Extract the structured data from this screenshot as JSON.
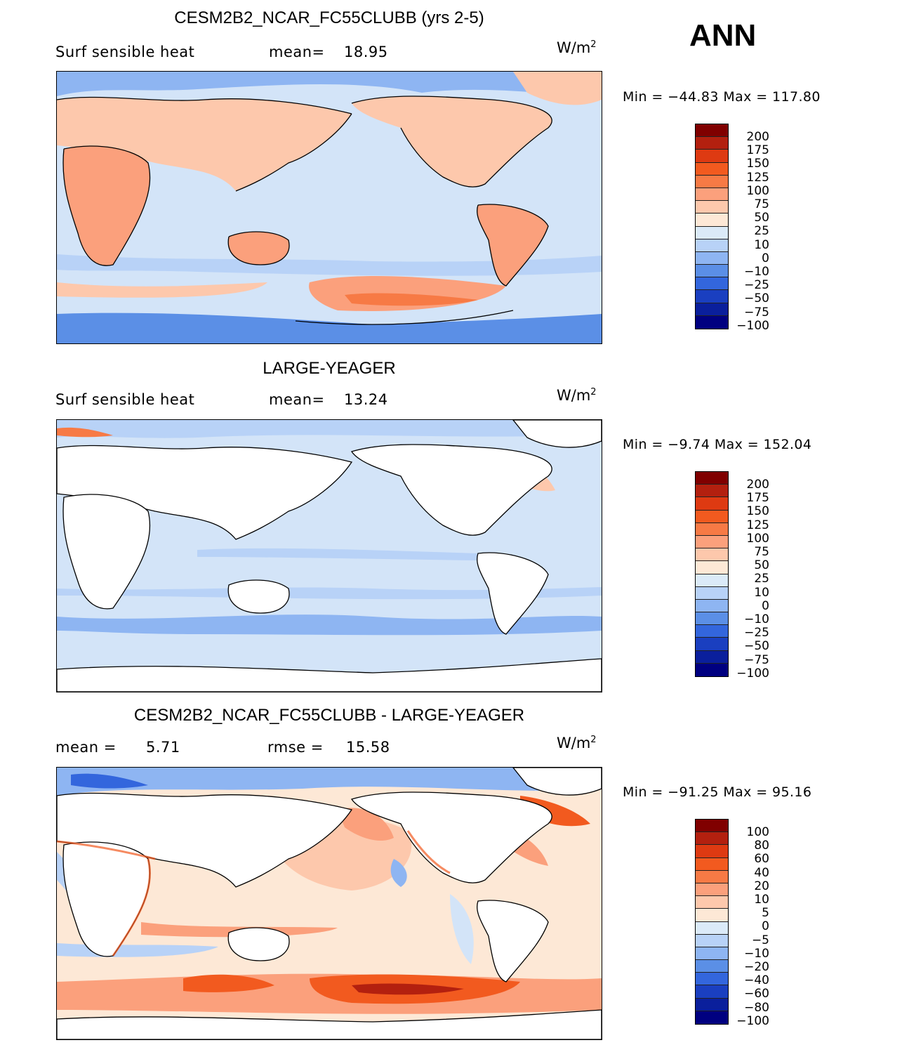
{
  "season": "ANN",
  "panels": [
    {
      "title": "CESM2B2_NCAR_FC55CLUBB (yrs 2-5)",
      "left_label": "Surf sensible heat",
      "mean_label": "mean=",
      "mean_value": "18.95",
      "units": "W/m",
      "units_sup": "2",
      "min_label": "Min  =",
      "min_value": "−44.83",
      "max_label": "Max  =",
      "max_value": "117.80",
      "colorbar_labels": [
        "200",
        "175",
        "150",
        "125",
        "100",
        "75",
        "50",
        "25",
        "10",
        "0",
        "−10",
        "−25",
        "−50",
        "−75",
        "−100"
      ]
    },
    {
      "title": "LARGE-YEAGER",
      "left_label": "Surf sensible heat",
      "mean_label": "mean=",
      "mean_value": "13.24",
      "units": "W/m",
      "units_sup": "2",
      "min_label": "Min  =",
      "min_value": "−9.74",
      "max_label": "Max  =",
      "max_value": "152.04",
      "colorbar_labels": [
        "200",
        "175",
        "150",
        "125",
        "100",
        "75",
        "50",
        "25",
        "10",
        "0",
        "−10",
        "−25",
        "−50",
        "−75",
        "−100"
      ]
    },
    {
      "title": "CESM2B2_NCAR_FC55CLUBB - LARGE-YEAGER",
      "left_label": "mean  =",
      "left_value": "5.71",
      "mean_label": "rmse  =",
      "mean_value": "15.58",
      "units": "W/m",
      "units_sup": "2",
      "min_label": "Min  =",
      "min_value": "−91.25",
      "max_label": "Max  =",
      "max_value": "95.16",
      "colorbar_labels": [
        "100",
        "80",
        "60",
        "40",
        "20",
        "10",
        "5",
        "0",
        "−5",
        "−10",
        "−20",
        "−40",
        "−60",
        "−80",
        "−100"
      ]
    }
  ],
  "colors": {
    "scale": [
      "#800000",
      "#b3200f",
      "#de3a12",
      "#f25a1f",
      "#f77a45",
      "#fba07c",
      "#fdc8ac",
      "#fde8d6",
      "#dbeaf8",
      "#b8d2f7",
      "#8eb5f2",
      "#5b8fe6",
      "#3366dd",
      "#1a3fc0",
      "#0a1f9c",
      "#000080"
    ],
    "ocean_pos": "#fcdcc8",
    "ocean_neg": "#d3e4f8",
    "land": "#ffffff"
  },
  "chart_data": [
    {
      "type": "heatmap",
      "title": "CESM2B2_NCAR_FC55CLUBB (yrs 2-5)",
      "variable": "Surf sensible heat",
      "units": "W/m2",
      "mean": 18.95,
      "min": -44.83,
      "max": 117.8,
      "levels": [
        -100,
        -75,
        -50,
        -25,
        -10,
        0,
        10,
        25,
        50,
        75,
        100,
        125,
        150,
        175,
        200
      ]
    },
    {
      "type": "heatmap",
      "title": "LARGE-YEAGER",
      "variable": "Surf sensible heat",
      "units": "W/m2",
      "mean": 13.24,
      "min": -9.74,
      "max": 152.04,
      "levels": [
        -100,
        -75,
        -50,
        -25,
        -10,
        0,
        10,
        25,
        50,
        75,
        100,
        125,
        150,
        175,
        200
      ]
    },
    {
      "type": "heatmap",
      "title": "CESM2B2_NCAR_FC55CLUBB - LARGE-YEAGER",
      "units": "W/m2",
      "mean": 5.71,
      "rmse": 15.58,
      "min": -91.25,
      "max": 95.16,
      "levels": [
        -100,
        -80,
        -60,
        -40,
        -20,
        -10,
        -5,
        0,
        5,
        10,
        20,
        40,
        60,
        80,
        100
      ]
    }
  ]
}
